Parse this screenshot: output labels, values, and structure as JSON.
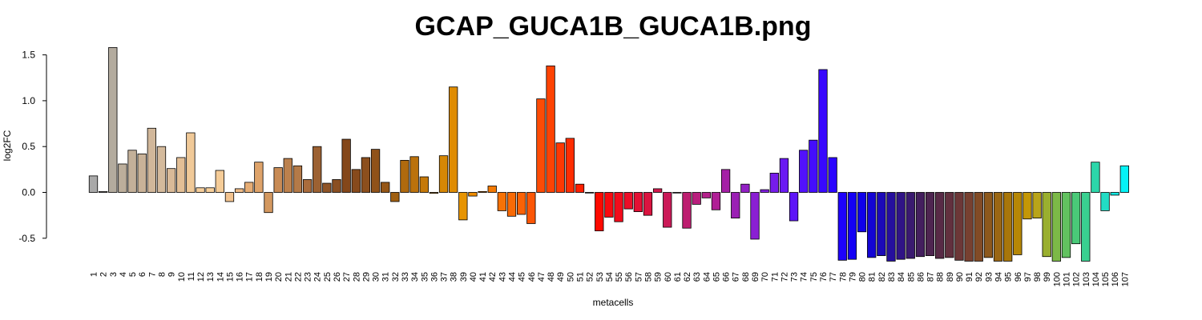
{
  "chart_data": {
    "type": "bar",
    "title": "GCAP_GUCA1B_GUCA1B.png",
    "xlabel": "metacells",
    "ylabel": "log2FC",
    "ylim": [
      -0.76,
      1.6
    ],
    "yticks": [
      -0.5,
      0.0,
      0.5,
      1.0,
      1.5
    ],
    "ytick_labels": [
      "-0.5",
      "0.0",
      "0.5",
      "1.0",
      "1.5"
    ],
    "grid": false,
    "legend": "none",
    "categories": [
      "1",
      "2",
      "3",
      "4",
      "5",
      "6",
      "7",
      "8",
      "9",
      "10",
      "11",
      "12",
      "13",
      "14",
      "15",
      "16",
      "17",
      "18",
      "19",
      "20",
      "21",
      "22",
      "23",
      "24",
      "25",
      "26",
      "27",
      "28",
      "29",
      "30",
      "31",
      "32",
      "33",
      "34",
      "35",
      "36",
      "37",
      "38",
      "39",
      "40",
      "41",
      "42",
      "43",
      "44",
      "45",
      "46",
      "47",
      "48",
      "49",
      "50",
      "51",
      "52",
      "53",
      "54",
      "55",
      "56",
      "57",
      "58",
      "59",
      "60",
      "61",
      "62",
      "63",
      "64",
      "65",
      "66",
      "67",
      "68",
      "69",
      "70",
      "71",
      "72",
      "73",
      "74",
      "75",
      "76",
      "77",
      "78",
      "79",
      "80",
      "81",
      "82",
      "83",
      "84",
      "85",
      "86",
      "87",
      "88",
      "89",
      "90",
      "91",
      "92",
      "93",
      "94",
      "95",
      "96",
      "97",
      "98",
      "99",
      "100",
      "101",
      "102",
      "103",
      "104",
      "105",
      "106",
      "107"
    ],
    "values": [
      0.18,
      0.01,
      1.58,
      0.31,
      0.46,
      0.42,
      0.7,
      0.5,
      0.26,
      0.38,
      0.65,
      0.05,
      0.05,
      0.24,
      -0.1,
      0.04,
      0.11,
      0.33,
      -0.22,
      0.27,
      0.37,
      0.29,
      0.14,
      0.5,
      0.1,
      0.14,
      0.58,
      0.25,
      0.38,
      0.47,
      0.11,
      -0.1,
      0.35,
      0.39,
      0.17,
      -0.01,
      0.4,
      1.15,
      -0.3,
      -0.04,
      0.01,
      0.07,
      -0.2,
      -0.26,
      -0.24,
      -0.34,
      1.02,
      1.38,
      0.54,
      0.59,
      0.09,
      0.0,
      -0.42,
      -0.27,
      -0.32,
      -0.18,
      -0.21,
      -0.25,
      0.04,
      -0.38,
      0.0,
      -0.39,
      -0.13,
      -0.06,
      -0.19,
      0.25,
      -0.28,
      0.09,
      -0.51,
      0.03,
      0.21,
      0.37,
      -0.31,
      0.46,
      0.57,
      1.34,
      0.38,
      -0.74,
      -0.73,
      -0.43,
      -0.71,
      -0.69,
      -0.75,
      -0.73,
      -0.72,
      -0.7,
      -0.69,
      -0.72,
      -0.71,
      -0.74,
      -0.75,
      -0.75,
      -0.71,
      -0.75,
      -0.75,
      -0.68,
      -0.29,
      -0.28,
      -0.7,
      -0.75,
      -0.71,
      -0.56,
      -0.75,
      0.33,
      -0.2,
      -0.03,
      0.29
    ],
    "colors": [
      "#a9a9a9",
      "#b0aca4",
      "#b3ab9e",
      "#bcae9b",
      "#c3b099",
      "#c9b298",
      "#d1b79a",
      "#d4ba9c",
      "#d9ba98",
      "#e3bf96",
      "#f0c998",
      "#f5cd9a",
      "#f7cf9a",
      "#f5cc98",
      "#f3c38f",
      "#efbb86",
      "#e6ad75",
      "#dea36a",
      "#d39860",
      "#c88b55",
      "#bc814d",
      "#b47a48",
      "#aa6c3c",
      "#9c6132",
      "#8f5427",
      "#8a4f22",
      "#84471a",
      "#874a1c",
      "#8c4f1d",
      "#905219",
      "#955616",
      "#a06012",
      "#b06a0e",
      "#bb720c",
      "#c57909",
      "#cd8106",
      "#d68704",
      "#df8c02",
      "#e79401",
      "#ee8c02",
      "#f28203",
      "#f37a05",
      "#f67206",
      "#f86a06",
      "#fa6206",
      "#fc5606",
      "#fd4b05",
      "#fd4303",
      "#fe3802",
      "#fe2d01",
      "#fe1f00",
      "#fe1000",
      "#fd0a00",
      "#f80a10",
      "#f20c1c",
      "#ec0e28",
      "#e31034",
      "#da1440",
      "#d2184c",
      "#cb1a58",
      "#c41c64",
      "#bd1e70",
      "#b91f7d",
      "#b4208a",
      "#b01f96",
      "#a51fa6",
      "#9b20b4",
      "#9220c4",
      "#8a1fd3",
      "#801ee0",
      "#761ceb",
      "#6a19f3",
      "#5e15f8",
      "#5211fc",
      "#440dfe",
      "#3808fe",
      "#2a04ff",
      "#1e02fc",
      "#1400f5",
      "#0f00ea",
      "#1405d4",
      "#1c0ab8",
      "#260f9e",
      "#301486",
      "#3a1a70",
      "#441f5e",
      "#4e2550",
      "#582a46",
      "#62303e",
      "#6c3737",
      "#774030",
      "#824b26",
      "#8d581c",
      "#9a6613",
      "#a8760a",
      "#b68706",
      "#c49706",
      "#b9a419",
      "#9aaf2f",
      "#7cb947",
      "#62c25f",
      "#4ac978",
      "#39d090",
      "#2dd6aa",
      "#22dcc4",
      "#13e6e0",
      "#05f2f5"
    ]
  }
}
